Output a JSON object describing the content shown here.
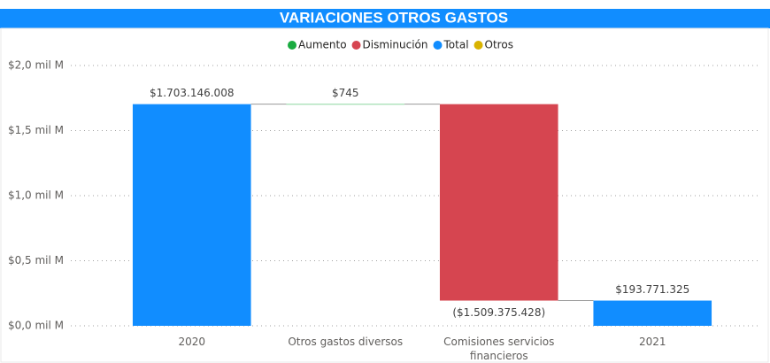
{
  "chart_data": {
    "type": "waterfall",
    "title": "VARIACIONES OTROS GASTOS",
    "legend": [
      {
        "name": "Aumento",
        "color": "#1aab40"
      },
      {
        "name": "Disminución",
        "color": "#d64550"
      },
      {
        "name": "Total",
        "color": "#118dff"
      },
      {
        "name": "Otros",
        "color": "#d9b300"
      }
    ],
    "categories": [
      "2020",
      "Otros gastos diversos",
      "Comisiones servicios financieros",
      "2021"
    ],
    "bar_types": [
      "Total",
      "Aumento",
      "Disminución",
      "Total"
    ],
    "values": [
      1703146008,
      745,
      -1509375428,
      193771325
    ],
    "value_labels": [
      "$1.703.146.008",
      "$745",
      "($1.509.375.428)",
      "$193.771.325"
    ],
    "ylim": [
      0,
      2000000000
    ],
    "yticks": [
      {
        "value": 0,
        "label": "$0,0 mil M"
      },
      {
        "value": 500000000,
        "label": "$0,5 mil M"
      },
      {
        "value": 1000000000,
        "label": "$1,0 mil M"
      },
      {
        "value": 1500000000,
        "label": "$1,5 mil M"
      },
      {
        "value": 2000000000,
        "label": "$2,0 mil M"
      }
    ],
    "grid": true
  }
}
